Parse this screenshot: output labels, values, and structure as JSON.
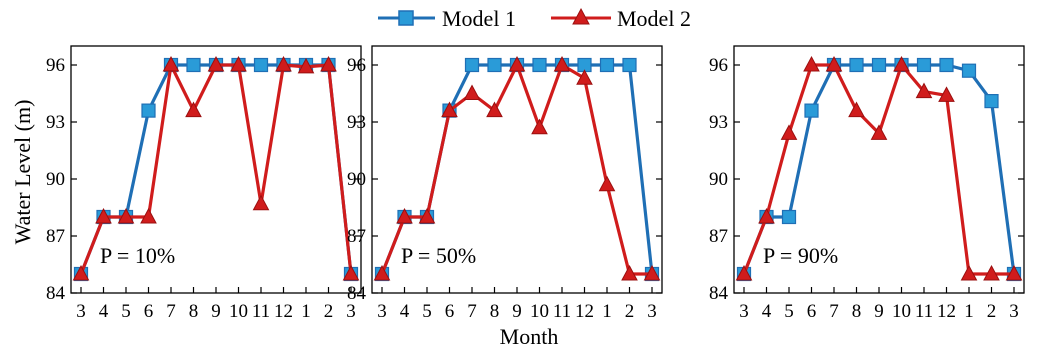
{
  "chart_data": {
    "type": "line",
    "xlabel": "Month",
    "ylabel": "Water Level (m)",
    "ylim": [
      84,
      97
    ],
    "yticks": [
      "84",
      "87",
      "90",
      "93",
      "96"
    ],
    "ytick_values": [
      84,
      87,
      90,
      93,
      96
    ],
    "categories": [
      "3",
      "4",
      "5",
      "6",
      "7",
      "8",
      "9",
      "10",
      "11",
      "12",
      "1",
      "2",
      "3"
    ],
    "legend": {
      "position": "top-center",
      "entries": [
        {
          "name": "Model 1",
          "color": "#1f6fb5",
          "marker": "square"
        },
        {
          "name": "Model 2",
          "color": "#d01c1c",
          "marker": "triangle"
        }
      ]
    },
    "panels": [
      {
        "annotation": "P = 10%",
        "series": [
          {
            "name": "Model 1",
            "values": [
              85,
              88,
              88,
              93.6,
              96,
              96,
              96,
              96,
              96,
              96,
              96,
              96,
              85
            ]
          },
          {
            "name": "Model 2",
            "values": [
              85,
              88,
              88,
              88,
              96,
              93.6,
              96,
              96,
              88.7,
              96,
              95.9,
              96,
              85
            ]
          }
        ]
      },
      {
        "annotation": "P = 50%",
        "series": [
          {
            "name": "Model 1",
            "values": [
              85,
              88,
              88,
              93.6,
              96,
              96,
              96,
              96,
              96,
              96,
              96,
              96,
              85
            ]
          },
          {
            "name": "Model 2",
            "values": [
              85,
              88,
              88,
              93.6,
              94.5,
              93.6,
              96,
              92.7,
              96,
              95.3,
              89.7,
              85,
              85
            ]
          }
        ]
      },
      {
        "annotation": "P = 90%",
        "series": [
          {
            "name": "Model 1",
            "values": [
              85,
              88,
              88,
              93.6,
              96,
              96,
              96,
              96,
              96,
              96,
              95.7,
              94.1,
              85
            ]
          },
          {
            "name": "Model 2",
            "values": [
              85,
              88,
              92.4,
              96,
              96,
              93.6,
              92.4,
              96,
              94.6,
              94.4,
              85,
              85,
              85
            ]
          }
        ]
      }
    ]
  }
}
